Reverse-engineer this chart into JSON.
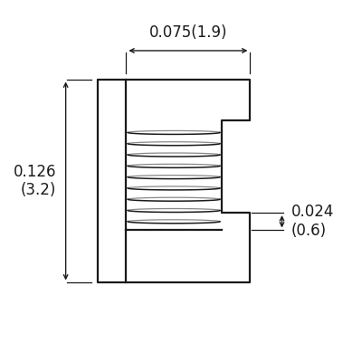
{
  "bg_color": "#ffffff",
  "line_color": "#1a1a1a",
  "dim_color": "#1a1a1a",
  "fig_size": [
    4.0,
    4.0
  ],
  "dpi": 100,
  "dim_top_label": "0.075(1.9)",
  "dim_left_label1": "0.126",
  "dim_left_label2": "(3.2)",
  "dim_right_label1": "0.024",
  "dim_right_label2": "(0.6)",
  "font_size_dim": 12
}
